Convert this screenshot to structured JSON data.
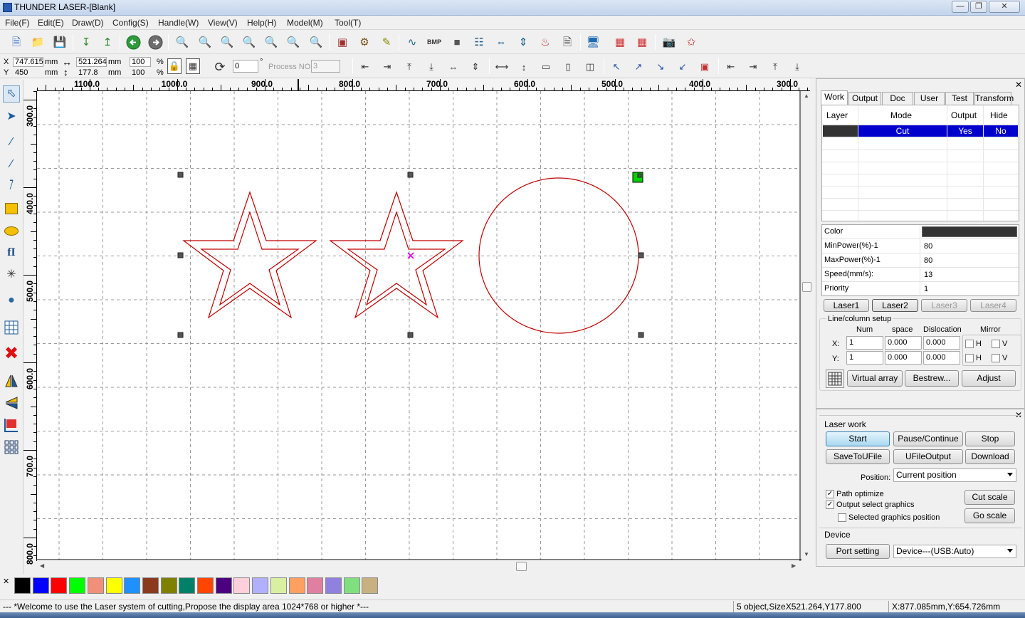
{
  "window": {
    "title": "THUNDER LASER-[Blank]"
  },
  "menu": [
    "File(F)",
    "Edit(E)",
    "Draw(D)",
    "Config(S)",
    "Handle(W)",
    "View(V)",
    "Help(H)",
    "Model(M)",
    "Tool(T)"
  ],
  "coords": {
    "x_label": "X",
    "y_label": "Y",
    "x_value": "747.615",
    "y_value": "450",
    "x_unit": "mm",
    "y_unit": "mm",
    "width_value": "521.264",
    "height_value": "177.8",
    "w_unit": "mm",
    "h_unit": "mm",
    "scale_x": "100",
    "scale_y": "100",
    "percent": "%",
    "rotate_value": "0",
    "degree": "°",
    "process_label": "Process NO:",
    "process_value": "3"
  },
  "ruler": {
    "h_labels": [
      "1100.0",
      "1000.0",
      "900.0",
      "800.0",
      "700.0",
      "600.0",
      "500.0",
      "400.0",
      "300.0"
    ],
    "v_labels": [
      "300.0",
      "400.0",
      "500.0",
      "600.0",
      "700.0",
      "800.0"
    ]
  },
  "panel": {
    "tabs": [
      "Work",
      "Output",
      "Doc",
      "User",
      "Test",
      "Transform"
    ],
    "layer_headers": {
      "layer": "Layer",
      "mode": "Mode",
      "output": "Output",
      "hide": "Hide"
    },
    "layer_row": {
      "color": "#333333",
      "mode": "Cut",
      "output": "Yes",
      "hide": "No"
    },
    "props": [
      {
        "key": "Color",
        "value": ""
      },
      {
        "key": "MinPower(%)-1",
        "value": "80"
      },
      {
        "key": "MaxPower(%)-1",
        "value": "80"
      },
      {
        "key": "Speed(mm/s):",
        "value": "13"
      },
      {
        "key": "Priority",
        "value": "1"
      }
    ],
    "lasers": [
      "Laser1",
      "Laser2",
      "Laser3",
      "Laser4"
    ],
    "array": {
      "title": "Line/column setup",
      "headers": {
        "num": "Num",
        "space": "space",
        "dislocation": "Dislocation",
        "mirror": "Mirror"
      },
      "x_label": "X:",
      "y_label": "Y:",
      "x_num": "1",
      "x_space": "0.000",
      "x_disloc": "0.000",
      "y_num": "1",
      "y_space": "0.000",
      "y_disloc": "0.000",
      "h": "H",
      "v": "V"
    },
    "array_buttons": {
      "virtual": "Virtual array",
      "bestrew": "Bestrew...",
      "adjust": "Adjust"
    }
  },
  "laserwork": {
    "title": "Laser work",
    "start": "Start",
    "pause": "Pause/Continue",
    "stop": "Stop",
    "save": "SaveToUFile",
    "ufile": "UFileOutput",
    "download": "Download",
    "position_label": "Position:",
    "position_value": "Current position",
    "path_optimize": "Path optimize",
    "output_select": "Output select graphics",
    "selected_pos": "Selected graphics position",
    "cut_scale": "Cut scale",
    "go_scale": "Go scale",
    "device_title": "Device",
    "port_setting": "Port setting",
    "device_value": "Device---(USB:Auto)"
  },
  "palette": [
    "#000000",
    "#0000ff",
    "#ff0000",
    "#00ff00",
    "#f0907a",
    "#ffff00",
    "#1e90ff",
    "#8b3a1e",
    "#808000",
    "#008066",
    "#ff4500",
    "#4b0082",
    "#ffd0dc",
    "#b0b0ff",
    "#d8f0a0",
    "#ffa060",
    "#e080a0",
    "#9080e0",
    "#80e080",
    "#c8b080"
  ],
  "status": {
    "message": "--- *Welcome to use the Laser system of cutting,Propose the display area 1024*768 or higher *---",
    "objects": "5 object,SizeX521.264,Y177.800",
    "pos": "X:877.085mm,Y:654.726mm"
  }
}
